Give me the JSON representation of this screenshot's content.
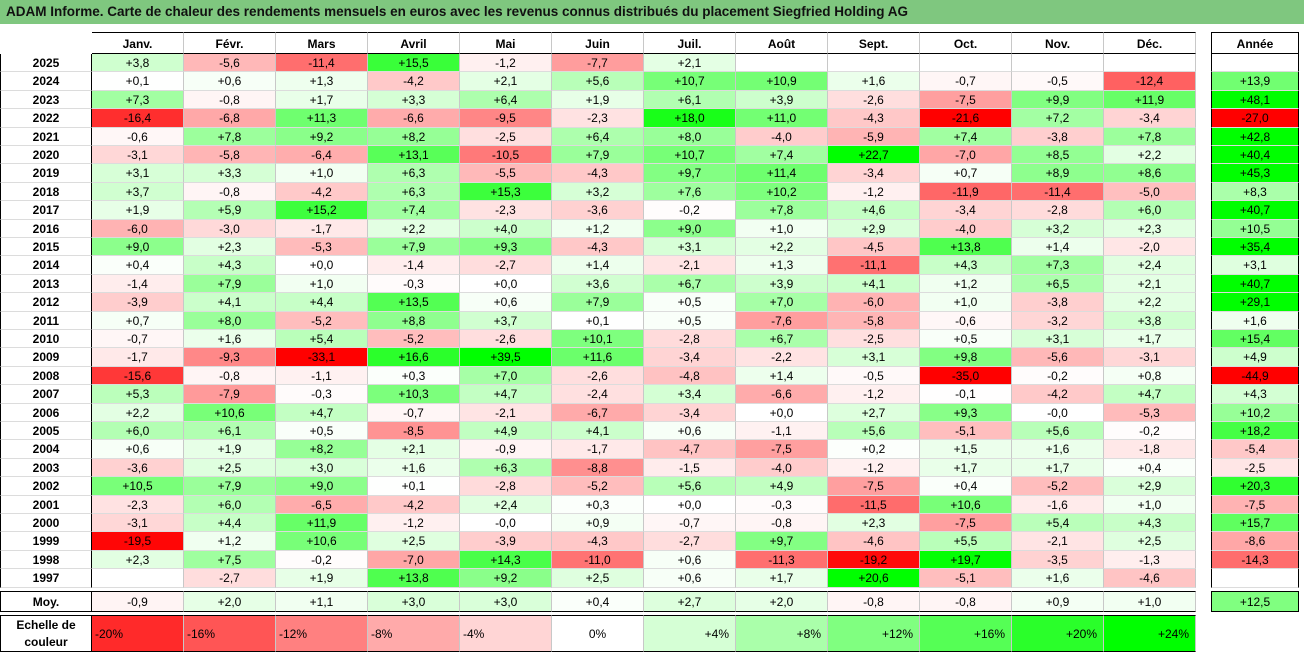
{
  "title": "ADAM Informe. Carte de chaleur des rendements mensuels en euros avec les revenus connus distribués du placement Siegfried Holding AG",
  "chart_data": {
    "type": "heatmap",
    "title": "ADAM Informe. Carte de chaleur des rendements mensuels en euros avec les revenus connus distribués du placement Siegfried Holding AG",
    "columns": [
      "Janv.",
      "Févr.",
      "Mars",
      "Avril",
      "Mai",
      "Juin",
      "Juil.",
      "Août",
      "Sept.",
      "Oct.",
      "Nov.",
      "Déc."
    ],
    "year_column_label": "Année",
    "rows": [
      {
        "year": "2025",
        "months": [
          "+3,8",
          "-5,6",
          "-11,4",
          "+15,5",
          "-1,2",
          "-7,7",
          "+2,1",
          "",
          "",
          "",
          "",
          ""
        ],
        "annual": ""
      },
      {
        "year": "2024",
        "months": [
          "+0,1",
          "+0,6",
          "+1,3",
          "-4,2",
          "+2,1",
          "+5,6",
          "+10,7",
          "+10,9",
          "+1,6",
          "-0,7",
          "-0,5",
          "-12,4"
        ],
        "annual": "+13,9"
      },
      {
        "year": "2023",
        "months": [
          "+7,3",
          "-0,8",
          "+1,7",
          "+3,3",
          "+6,4",
          "+1,9",
          "+6,1",
          "+3,9",
          "-2,6",
          "-7,5",
          "+9,9",
          "+11,9"
        ],
        "annual": "+48,1"
      },
      {
        "year": "2022",
        "months": [
          "-16,4",
          "-6,8",
          "+11,3",
          "-6,6",
          "-9,5",
          "-2,3",
          "+18,0",
          "+11,0",
          "-4,3",
          "-21,6",
          "+7,2",
          "-3,4"
        ],
        "annual": "-27,0"
      },
      {
        "year": "2021",
        "months": [
          "-0,6",
          "+7,8",
          "+9,2",
          "+8,2",
          "-2,5",
          "+6,4",
          "+8,0",
          "-4,0",
          "-5,9",
          "+7,4",
          "-3,8",
          "+7,8"
        ],
        "annual": "+42,8"
      },
      {
        "year": "2020",
        "months": [
          "-3,1",
          "-5,8",
          "-6,4",
          "+13,1",
          "-10,5",
          "+7,9",
          "+10,7",
          "+7,4",
          "+22,7",
          "-7,0",
          "+8,5",
          "+2,2"
        ],
        "annual": "+40,4"
      },
      {
        "year": "2019",
        "months": [
          "+3,1",
          "+3,3",
          "+1,0",
          "+6,3",
          "-5,5",
          "-4,3",
          "+9,7",
          "+11,4",
          "-3,4",
          "+0,7",
          "+8,9",
          "+8,6"
        ],
        "annual": "+45,3"
      },
      {
        "year": "2018",
        "months": [
          "+3,7",
          "-0,8",
          "-4,2",
          "+6,3",
          "+15,3",
          "+3,2",
          "+7,6",
          "+10,2",
          "-1,2",
          "-11,9",
          "-11,4",
          "-5,0"
        ],
        "annual": "+8,3"
      },
      {
        "year": "2017",
        "months": [
          "+1,9",
          "+5,9",
          "+15,2",
          "+7,4",
          "-2,3",
          "-3,6",
          "-0,2",
          "+7,8",
          "+4,6",
          "-3,4",
          "-2,8",
          "+6,0"
        ],
        "annual": "+40,7"
      },
      {
        "year": "2016",
        "months": [
          "-6,0",
          "-3,0",
          "-1,7",
          "+2,2",
          "+4,0",
          "+1,2",
          "+9,0",
          "+1,0",
          "+2,9",
          "-4,0",
          "+3,2",
          "+2,3"
        ],
        "annual": "+10,5"
      },
      {
        "year": "2015",
        "months": [
          "+9,0",
          "+2,3",
          "-5,3",
          "+7,9",
          "+9,3",
          "-4,3",
          "+3,1",
          "+2,2",
          "-4,5",
          "+13,8",
          "+1,4",
          "-2,0"
        ],
        "annual": "+35,4"
      },
      {
        "year": "2014",
        "months": [
          "+0,4",
          "+4,3",
          "+0,0",
          "-1,4",
          "-2,7",
          "+1,4",
          "-2,1",
          "+1,3",
          "-11,1",
          "+4,3",
          "+7,3",
          "+2,4"
        ],
        "annual": "+3,1"
      },
      {
        "year": "2013",
        "months": [
          "-1,4",
          "+7,9",
          "+1,0",
          "-0,3",
          "+0,0",
          "+3,6",
          "+6,7",
          "+3,9",
          "+4,1",
          "+1,2",
          "+6,5",
          "+2,1"
        ],
        "annual": "+40,7"
      },
      {
        "year": "2012",
        "months": [
          "-3,9",
          "+4,1",
          "+4,4",
          "+13,5",
          "+0,6",
          "+7,9",
          "+0,5",
          "+7,0",
          "-6,0",
          "+1,0",
          "-3,8",
          "+2,2"
        ],
        "annual": "+29,1"
      },
      {
        "year": "2011",
        "months": [
          "+0,7",
          "+8,0",
          "-5,2",
          "+8,8",
          "+3,7",
          "+0,1",
          "+0,5",
          "-7,6",
          "-5,8",
          "-0,6",
          "-3,2",
          "+3,8"
        ],
        "annual": "+1,6"
      },
      {
        "year": "2010",
        "months": [
          "-0,7",
          "+1,6",
          "+5,4",
          "-5,2",
          "-2,6",
          "+10,1",
          "-2,8",
          "+6,7",
          "-2,5",
          "+0,5",
          "+3,1",
          "+1,7"
        ],
        "annual": "+15,4"
      },
      {
        "year": "2009",
        "months": [
          "-1,7",
          "-9,3",
          "-33,1",
          "+16,6",
          "+39,5",
          "+11,6",
          "-3,4",
          "-2,2",
          "+3,1",
          "+9,8",
          "-5,6",
          "-3,1"
        ],
        "annual": "+4,9"
      },
      {
        "year": "2008",
        "months": [
          "-15,6",
          "-0,8",
          "-1,1",
          "+0,3",
          "+7,0",
          "-2,6",
          "-4,8",
          "+1,4",
          "-0,5",
          "-35,0",
          "-0,2",
          "+0,8"
        ],
        "annual": "-44,9"
      },
      {
        "year": "2007",
        "months": [
          "+5,3",
          "-7,9",
          "-0,3",
          "+10,3",
          "+4,7",
          "-2,4",
          "+3,4",
          "-6,6",
          "-1,2",
          "-0,1",
          "-4,2",
          "+4,7"
        ],
        "annual": "+4,3"
      },
      {
        "year": "2006",
        "months": [
          "+2,2",
          "+10,6",
          "+4,7",
          "-0,7",
          "-2,1",
          "-6,7",
          "-3,4",
          "+0,0",
          "+2,7",
          "+9,3",
          "-0,0",
          "-5,3"
        ],
        "annual": "+10,2"
      },
      {
        "year": "2005",
        "months": [
          "+6,0",
          "+6,1",
          "+0,5",
          "-8,5",
          "+4,9",
          "+4,1",
          "+0,6",
          "-1,1",
          "+5,6",
          "-5,1",
          "+5,6",
          "-0,2"
        ],
        "annual": "+18,2"
      },
      {
        "year": "2004",
        "months": [
          "+0,6",
          "+1,9",
          "+8,2",
          "+2,1",
          "-0,9",
          "-1,7",
          "-4,7",
          "-7,5",
          "+0,2",
          "+1,5",
          "+1,6",
          "-1,8"
        ],
        "annual": "-5,4"
      },
      {
        "year": "2003",
        "months": [
          "-3,6",
          "+2,5",
          "+3,0",
          "+1,6",
          "+6,3",
          "-8,8",
          "-1,5",
          "-4,0",
          "-1,2",
          "+1,7",
          "+1,7",
          "+0,4"
        ],
        "annual": "-2,5"
      },
      {
        "year": "2002",
        "months": [
          "+10,5",
          "+7,9",
          "+9,0",
          "+0,1",
          "-2,8",
          "-5,2",
          "+5,6",
          "+4,9",
          "-7,5",
          "+0,4",
          "-5,2",
          "+2,9"
        ],
        "annual": "+20,3"
      },
      {
        "year": "2001",
        "months": [
          "-2,3",
          "+6,0",
          "-6,5",
          "-4,2",
          "+2,4",
          "+0,3",
          "+0,0",
          "-0,3",
          "-11,5",
          "+10,6",
          "-1,6",
          "+1,0"
        ],
        "annual": "-7,5"
      },
      {
        "year": "2000",
        "months": [
          "-3,1",
          "+4,4",
          "+11,9",
          "-1,2",
          "-0,0",
          "+0,9",
          "-0,7",
          "-0,8",
          "+2,3",
          "-7,5",
          "+5,4",
          "+4,3"
        ],
        "annual": "+15,7"
      },
      {
        "year": "1999",
        "months": [
          "-19,5",
          "+1,2",
          "+10,6",
          "+2,5",
          "-3,9",
          "-4,3",
          "-2,7",
          "+9,7",
          "-4,6",
          "+5,5",
          "-2,1",
          "+2,5"
        ],
        "annual": "-8,6"
      },
      {
        "year": "1998",
        "months": [
          "+2,3",
          "+7,5",
          "-0,2",
          "-7,0",
          "+14,3",
          "-11,0",
          "+0,6",
          "-11,3",
          "-19,2",
          "+19,7",
          "-3,5",
          "-1,3"
        ],
        "annual": "-14,3"
      },
      {
        "year": "1997",
        "months": [
          "",
          "-2,7",
          "+1,9",
          "+13,8",
          "+9,2",
          "+2,5",
          "+0,6",
          "+1,7",
          "+20,6",
          "-5,1",
          "+1,6",
          "-4,6"
        ],
        "annual": ""
      }
    ],
    "average": {
      "label": "Moy.",
      "months": [
        "-0,9",
        "+2,0",
        "+1,1",
        "+3,0",
        "+3,0",
        "+0,4",
        "+2,7",
        "+2,0",
        "-0,8",
        "-0,8",
        "+0,9",
        "+1,0"
      ],
      "annual": "+12,5"
    },
    "scale": {
      "label": "Echelle de couleur",
      "steps": [
        {
          "text": "-20%",
          "value": -20,
          "align": "left"
        },
        {
          "text": "-16%",
          "value": -16,
          "align": "left"
        },
        {
          "text": "-12%",
          "value": -12,
          "align": "left"
        },
        {
          "text": "-8%",
          "value": -8,
          "align": "left"
        },
        {
          "text": "-4%",
          "value": -4,
          "align": "left"
        },
        {
          "text": "0%",
          "value": 0,
          "align": "center"
        },
        {
          "text": "+4%",
          "value": 4,
          "align": "right"
        },
        {
          "text": "+8%",
          "value": 8,
          "align": "right"
        },
        {
          "text": "+12%",
          "value": 12,
          "align": "right"
        },
        {
          "text": "+16%",
          "value": 16,
          "align": "right"
        },
        {
          "text": "+20%",
          "value": 20,
          "align": "right"
        },
        {
          "text": "+24%",
          "value": 24,
          "align": "right"
        }
      ]
    },
    "colors": {
      "negative_max": "#ff0000",
      "neutral": "#ffffff",
      "positive_max": "#00ff00",
      "title_bar": "#7fc77f"
    }
  }
}
